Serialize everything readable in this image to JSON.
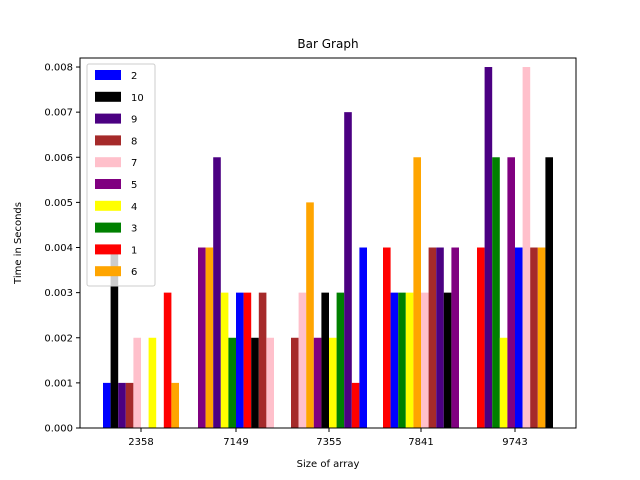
{
  "chart_data": {
    "type": "bar",
    "title": "Bar Graph",
    "xlabel": "Size of array",
    "ylabel": "Time in Seconds",
    "categories": [
      "2358",
      "7149",
      "7355",
      "7841",
      "9743"
    ],
    "ylim": [
      0,
      0.0082
    ],
    "yticks": [
      "0.000",
      "0.001",
      "0.002",
      "0.003",
      "0.004",
      "0.005",
      "0.006",
      "0.007",
      "0.008"
    ],
    "legend_position": "top-left",
    "legend": [
      {
        "label": "2",
        "color": "#0000ff"
      },
      {
        "label": "10",
        "color": "#000000"
      },
      {
        "label": "9",
        "color": "#4b0082"
      },
      {
        "label": "8",
        "color": "#a52a2a"
      },
      {
        "label": "7",
        "color": "#ffc0cb"
      },
      {
        "label": "5",
        "color": "#800080"
      },
      {
        "label": "4",
        "color": "#ffff00"
      },
      {
        "label": "3",
        "color": "#008000"
      },
      {
        "label": "1",
        "color": "#ff0000"
      },
      {
        "label": "6",
        "color": "#ffa500"
      }
    ],
    "groups": [
      {
        "category": "2358",
        "bars": [
          {
            "color": "#0000ff",
            "value": 0.001
          },
          {
            "color": "#000000",
            "value": 0.004
          },
          {
            "color": "#4b0082",
            "value": 0.001
          },
          {
            "color": "#a52a2a",
            "value": 0.001
          },
          {
            "color": "#ffc0cb",
            "value": 0.002
          },
          {
            "color": "#800080",
            "value": 0.0
          },
          {
            "color": "#ffff00",
            "value": 0.002
          },
          {
            "color": "#008000",
            "value": 0.0
          },
          {
            "color": "#ff0000",
            "value": 0.003
          },
          {
            "color": "#ffa500",
            "value": 0.001
          }
        ]
      },
      {
        "category": "7149",
        "bars": [
          {
            "color": "#800080",
            "value": 0.004
          },
          {
            "color": "#ffa500",
            "value": 0.004
          },
          {
            "color": "#4b0082",
            "value": 0.006
          },
          {
            "color": "#ffff00",
            "value": 0.003
          },
          {
            "color": "#008000",
            "value": 0.002
          },
          {
            "color": "#0000ff",
            "value": 0.003
          },
          {
            "color": "#ff0000",
            "value": 0.003
          },
          {
            "color": "#000000",
            "value": 0.002
          },
          {
            "color": "#a52a2a",
            "value": 0.003
          },
          {
            "color": "#ffc0cb",
            "value": 0.002
          }
        ]
      },
      {
        "category": "7355",
        "bars": [
          {
            "color": "#a52a2a",
            "value": 0.002
          },
          {
            "color": "#ffc0cb",
            "value": 0.003
          },
          {
            "color": "#ffa500",
            "value": 0.005
          },
          {
            "color": "#800080",
            "value": 0.002
          },
          {
            "color": "#000000",
            "value": 0.003
          },
          {
            "color": "#ffff00",
            "value": 0.002
          },
          {
            "color": "#008000",
            "value": 0.003
          },
          {
            "color": "#4b0082",
            "value": 0.007
          },
          {
            "color": "#ff0000",
            "value": 0.001
          },
          {
            "color": "#0000ff",
            "value": 0.004
          }
        ]
      },
      {
        "category": "7841",
        "bars": [
          {
            "color": "#ff0000",
            "value": 0.004
          },
          {
            "color": "#0000ff",
            "value": 0.003
          },
          {
            "color": "#008000",
            "value": 0.003
          },
          {
            "color": "#ffff00",
            "value": 0.003
          },
          {
            "color": "#ffa500",
            "value": 0.006
          },
          {
            "color": "#ffc0cb",
            "value": 0.003
          },
          {
            "color": "#a52a2a",
            "value": 0.004
          },
          {
            "color": "#4b0082",
            "value": 0.004
          },
          {
            "color": "#000000",
            "value": 0.003
          },
          {
            "color": "#800080",
            "value": 0.004
          }
        ]
      },
      {
        "category": "9743",
        "bars": [
          {
            "color": "#ff0000",
            "value": 0.004
          },
          {
            "color": "#4b0082",
            "value": 0.008
          },
          {
            "color": "#008000",
            "value": 0.006
          },
          {
            "color": "#ffff00",
            "value": 0.002
          },
          {
            "color": "#800080",
            "value": 0.006
          },
          {
            "color": "#0000ff",
            "value": 0.004
          },
          {
            "color": "#ffc0cb",
            "value": 0.008
          },
          {
            "color": "#a52a2a",
            "value": 0.004
          },
          {
            "color": "#ffa500",
            "value": 0.004
          },
          {
            "color": "#000000",
            "value": 0.006
          }
        ]
      }
    ]
  }
}
